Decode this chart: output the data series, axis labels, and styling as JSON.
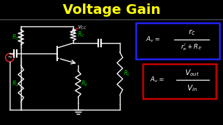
{
  "title": "Voltage Gain",
  "title_color": "#FFFF00",
  "bg_color": "#000000",
  "circuit_color": "#FFFFFF",
  "label_color": "#00CC00",
  "vcc_plus_color": "#FF2222",
  "formula1_box_color": "#2222FF",
  "formula2_box_color": "#CC0000",
  "formula_text_color": "#FFFFFF",
  "source_circle_color": "#CC2222"
}
